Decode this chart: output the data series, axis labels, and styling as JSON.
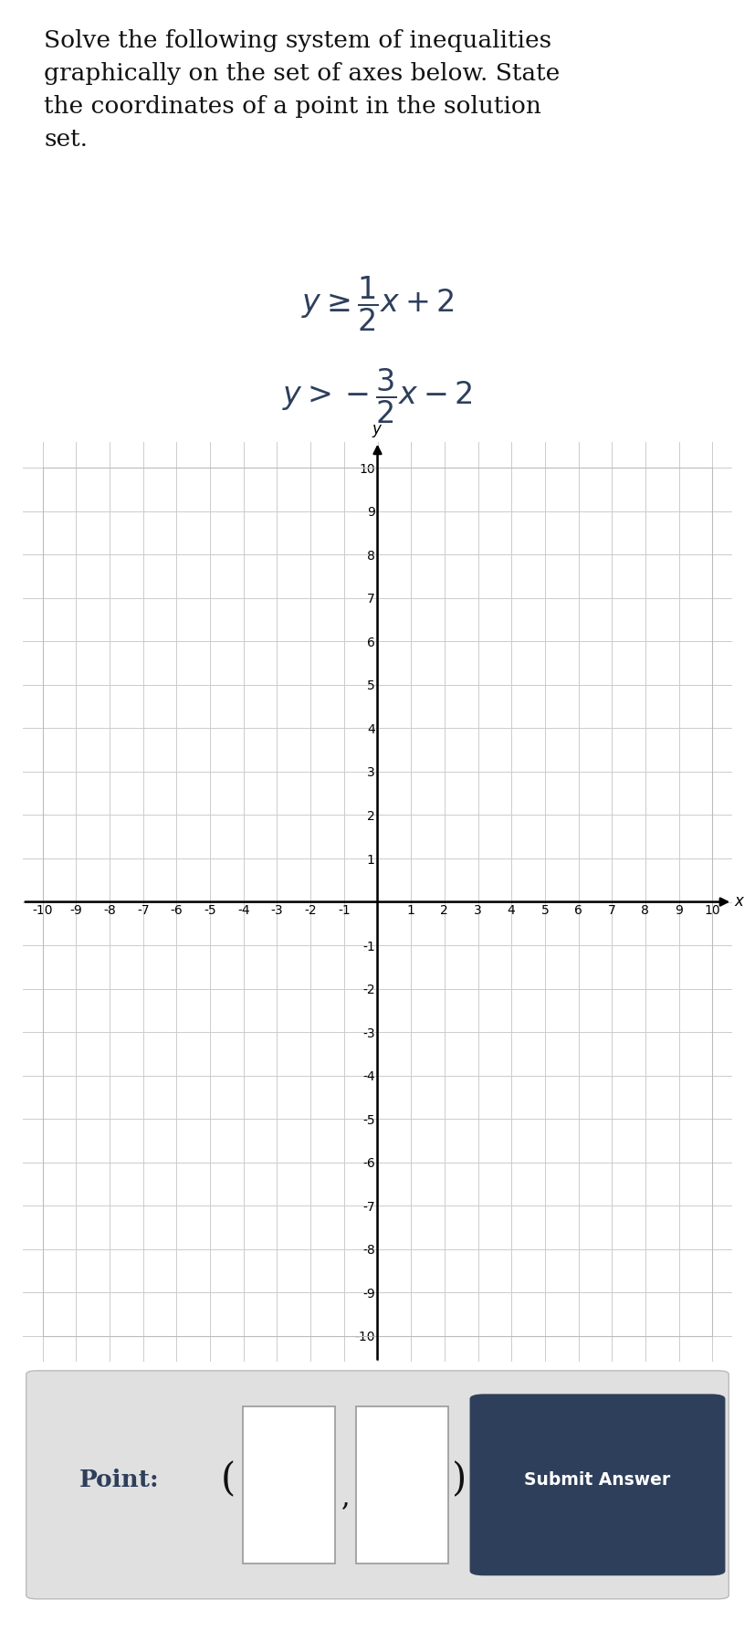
{
  "title_text": "Solve the following system of inequalities\ngraphically on the set of axes below. State\nthe coordinates of a point in the solution\nset.",
  "xlim": [
    -10,
    10
  ],
  "ylim": [
    -10,
    10
  ],
  "grid_color": "#cccccc",
  "bg_color": "#ffffff",
  "text_color": "#2e3f5c",
  "submit_text": "Submit Answer",
  "submit_bg": "#2e3f5c",
  "bottom_bg": "#e0e0e0",
  "title_fontsize": 19,
  "eq_fontsize": 24,
  "tick_fontsize": 8
}
